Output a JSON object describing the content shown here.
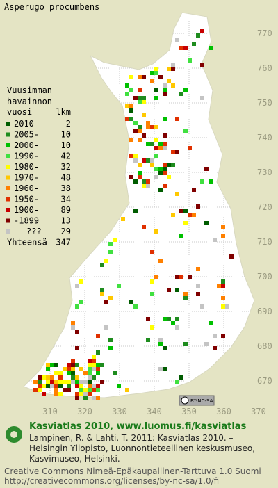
{
  "header": {
    "title": "Asperugo procumbens"
  },
  "legend": {
    "heading": [
      "Vuusimman",
      "havainnon"
    ],
    "column_year": "vuosi",
    "column_count": "lkm",
    "entries": [
      {
        "label": "2010-",
        "count": 2,
        "color": "#005c00"
      },
      {
        "label": "2005-",
        "count": 10,
        "color": "#1e8c1e"
      },
      {
        "label": "2000-",
        "count": 10,
        "color": "#00c000"
      },
      {
        "label": "1990-",
        "count": 42,
        "color": "#40e040"
      },
      {
        "label": "1980-",
        "count": 32,
        "color": "#ffff00"
      },
      {
        "label": "1970-",
        "count": 48,
        "color": "#ffc800"
      },
      {
        "label": "1960-",
        "count": 38,
        "color": "#ff8000"
      },
      {
        "label": "1950-",
        "count": 34,
        "color": "#e03000"
      },
      {
        "label": "1900-",
        "count": 89,
        "color": "#c80000"
      },
      {
        "label": "-1899",
        "count": 13,
        "color": "#800000"
      },
      {
        "label": "???",
        "count": 29,
        "color": "#c4c4c4"
      }
    ],
    "total_label": "Yhteensä",
    "total": 347
  },
  "map": {
    "yticks": [
      770,
      760,
      750,
      740,
      730,
      720,
      710,
      700,
      690,
      680,
      670
    ],
    "xticks": [
      310,
      320,
      330,
      340,
      350,
      360,
      370
    ],
    "license_badge": "BY-NC-SA"
  },
  "footer": {
    "site": "Kasviatlas 2010, www.luomus.fi/kasviatlas",
    "citation": [
      "Lampinen, R. & Lahti, T. 2011: Kasviatlas 2010. –",
      "Helsingin Yliopisto, Luonnontieteellinen keskusmuseo,",
      "Kasvimuseo, Helsinki."
    ],
    "license": [
      "Creative Commons Nimeä-Epäkaupallinen-Tarttuva 1.0 Suomi",
      "http://creativecommons.org/licenses/by-nc-sa/1.0/fi"
    ]
  }
}
